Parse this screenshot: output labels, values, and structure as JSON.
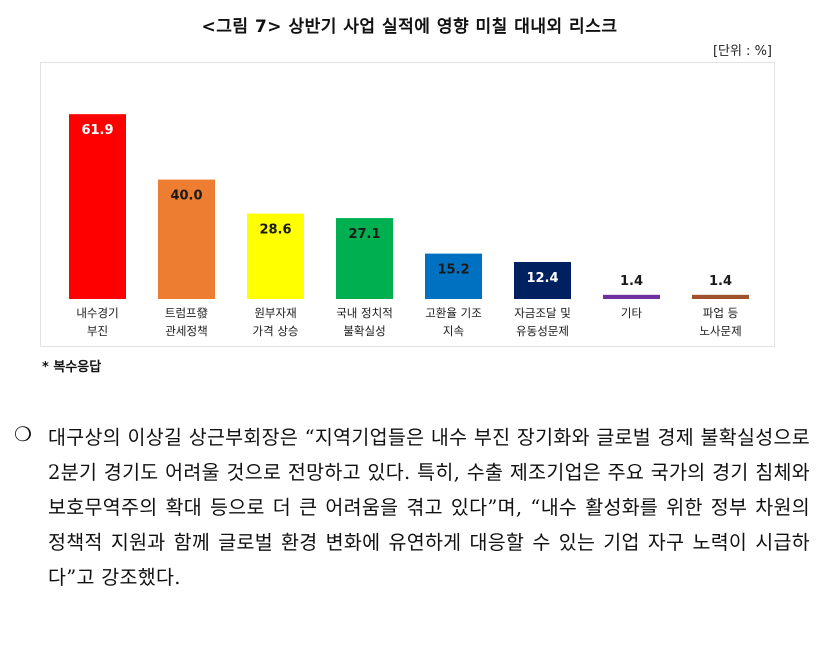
{
  "figure": {
    "title": "<그림 7> 상반기 사업 실적에 영향 미칠 대내외 리스크",
    "unit": "[단위 : %]",
    "footnote": "* 복수응답"
  },
  "chart_data": {
    "type": "bar",
    "categories": [
      [
        "내수경기",
        "부진"
      ],
      [
        "트럼프發",
        "관세정책"
      ],
      [
        "원부자재",
        "가격 상승"
      ],
      [
        "국내 정치적",
        "불확실성"
      ],
      [
        "고환율 기조",
        "지속"
      ],
      [
        "자금조달 및",
        "유동성문제"
      ],
      [
        "기타"
      ],
      [
        "파업 등",
        "노사문제"
      ]
    ],
    "values": [
      61.9,
      40.0,
      28.6,
      27.1,
      15.2,
      12.4,
      1.4,
      1.4
    ],
    "value_labels": [
      "61.9",
      "40.0",
      "28.6",
      "27.1",
      "15.2",
      "12.4",
      "1.4",
      "1.4"
    ],
    "colors": [
      "#ff0000",
      "#ed7d31",
      "#ffff00",
      "#00b050",
      "#0070c0",
      "#002060",
      "#7030a0",
      "#a0522d"
    ],
    "label_colors": [
      "#ffffff",
      "#1a1a1a",
      "#1a1a1a",
      "#1a1a1a",
      "#1a1a1a",
      "#ffffff",
      "#1a1a1a",
      "#1a1a1a"
    ],
    "ylim": [
      0,
      70
    ],
    "grid": false,
    "legend": "none"
  },
  "paragraph": {
    "bullet": "❍",
    "text": "대구상의 이상길 상근부회장은 “지역기업들은 내수 부진 장기화와 글로벌 경제 불확실성으로 2분기 경기도 어려울 것으로 전망하고 있다. 특히, 수출 제조기업은 주요 국가의 경기 침체와 보호무역주의 확대 등으로 더 큰 어려움을 겪고 있다”며, “내수 활성화를 위한 정부 차원의 정책적 지원과 함께 글로벌 환경 변화에 유연하게 대응할 수 있는 기업 자구 노력이 시급하다”고 강조했다."
  }
}
